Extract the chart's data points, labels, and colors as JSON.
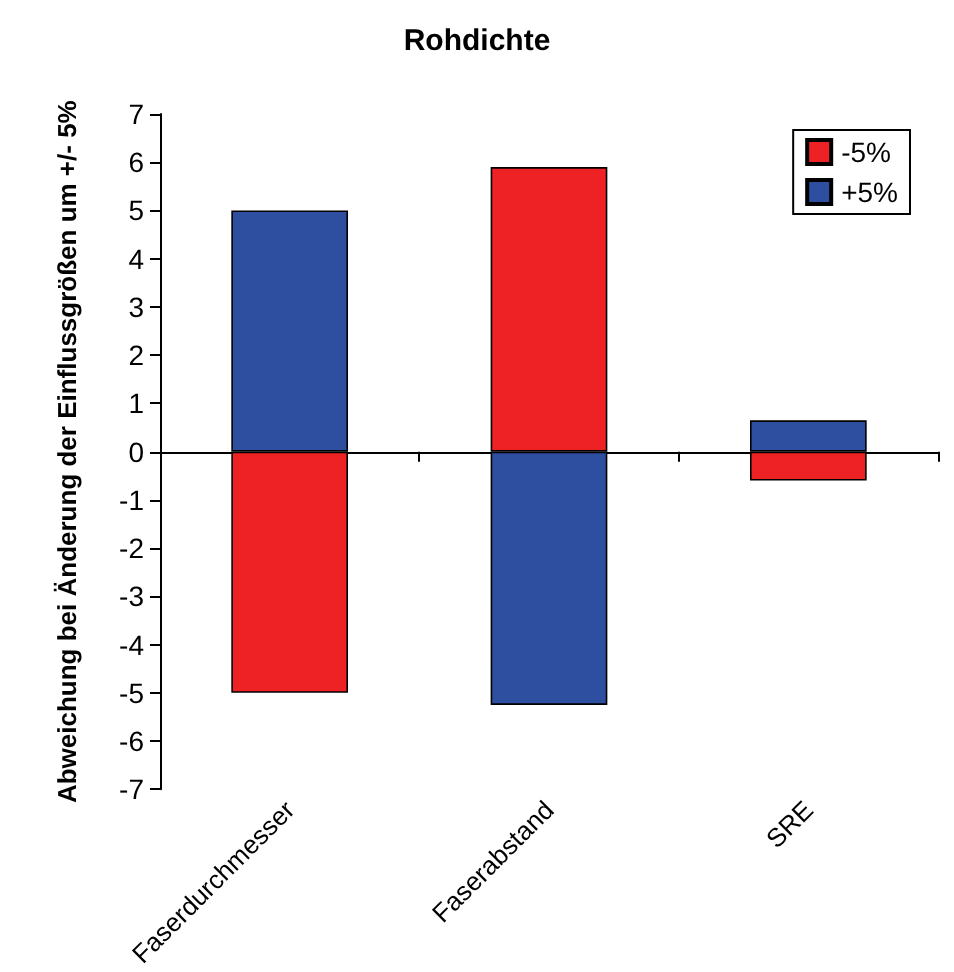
{
  "chart_data": {
    "type": "bar",
    "title": "Rohdichte",
    "ylabel": "Abweichung bei Änderung der Einflussgrößen um +/- 5%",
    "categories": [
      "Faserdurchmesser",
      "Faserabstand",
      "SRE"
    ],
    "series": [
      {
        "name": "-5%",
        "color": "#ee2224",
        "values": [
          -5.0,
          5.9,
          -0.6
        ]
      },
      {
        "name": "+5%",
        "color": "#2e4fa0",
        "values": [
          5.0,
          -5.25,
          0.65
        ]
      }
    ],
    "stacked": true,
    "ylim": [
      -7,
      7
    ],
    "yticks": [
      -7,
      -6,
      -5,
      -4,
      -3,
      -2,
      -1,
      0,
      1,
      2,
      3,
      4,
      5,
      6,
      7
    ],
    "legend": "top right"
  }
}
